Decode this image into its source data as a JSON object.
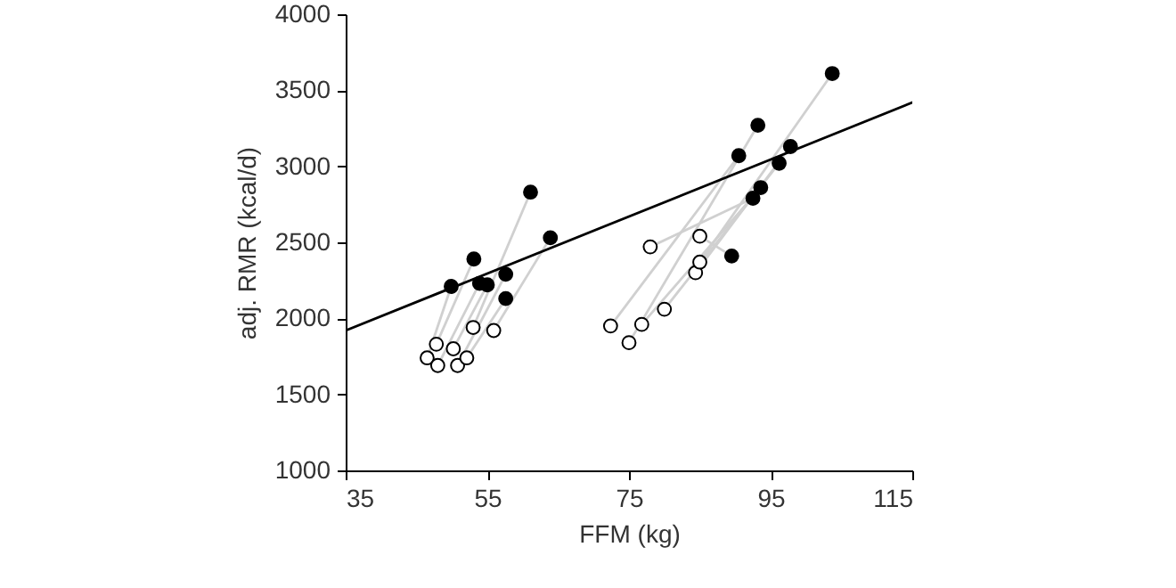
{
  "chart_data": {
    "type": "scatter",
    "xlabel": "FFM (kg)",
    "ylabel": "adj. RMR (kcal/d)",
    "xlim": [
      35,
      115
    ],
    "xticks": [
      35,
      55,
      75,
      95,
      115
    ],
    "ylim": [
      1000,
      4000
    ],
    "yticks": [
      1000,
      1500,
      2000,
      2500,
      3000,
      3500,
      4000
    ],
    "series": [
      {
        "type": "line",
        "marker": "none",
        "color": "#d0d0d0",
        "x": [
          46.5,
          49.9
        ],
        "values": [
          1740,
          2210
        ]
      },
      {
        "type": "line",
        "marker": "none",
        "color": "#d0d0d0",
        "x": [
          47.8,
          53.1
        ],
        "values": [
          1830,
          2390
        ]
      },
      {
        "type": "line",
        "marker": "none",
        "color": "#d0d0d0",
        "x": [
          48.0,
          53.9
        ],
        "values": [
          1690,
          2230
        ]
      },
      {
        "type": "line",
        "marker": "none",
        "color": "#d0d0d0",
        "x": [
          50.2,
          55.0
        ],
        "values": [
          1800,
          2220
        ]
      },
      {
        "type": "line",
        "marker": "none",
        "color": "#d0d0d0",
        "x": [
          50.8,
          57.6
        ],
        "values": [
          1690,
          2290
        ]
      },
      {
        "type": "line",
        "marker": "none",
        "color": "#d0d0d0",
        "x": [
          52.1,
          57.6
        ],
        "values": [
          1740,
          2130
        ]
      },
      {
        "type": "line",
        "marker": "none",
        "color": "#d0d0d0",
        "x": [
          53.0,
          61.1
        ],
        "values": [
          1940,
          2830
        ]
      },
      {
        "type": "line",
        "marker": "none",
        "color": "#d0d0d0",
        "x": [
          55.9,
          63.9
        ],
        "values": [
          1920,
          2530
        ]
      },
      {
        "type": "line",
        "marker": "none",
        "color": "#d0d0d0",
        "x": [
          72.4,
          90.5
        ],
        "values": [
          1950,
          3070
        ]
      },
      {
        "type": "line",
        "marker": "none",
        "color": "#d0d0d0",
        "x": [
          75.0,
          93.2
        ],
        "values": [
          1840,
          3270
        ]
      },
      {
        "type": "line",
        "marker": "none",
        "color": "#d0d0d0",
        "x": [
          76.8,
          93.6
        ],
        "values": [
          1960,
          2860
        ]
      },
      {
        "type": "line",
        "marker": "none",
        "color": "#d0d0d0",
        "x": [
          78.0,
          92.5
        ],
        "values": [
          2470,
          2790
        ]
      },
      {
        "type": "line",
        "marker": "none",
        "color": "#d0d0d0",
        "x": [
          80.0,
          96.2
        ],
        "values": [
          2060,
          3020
        ]
      },
      {
        "type": "line",
        "marker": "none",
        "color": "#d0d0d0",
        "x": [
          84.4,
          97.8
        ],
        "values": [
          2300,
          3130
        ]
      },
      {
        "type": "line",
        "marker": "none",
        "color": "#d0d0d0",
        "x": [
          85.0,
          103.7
        ],
        "values": [
          2370,
          3610
        ]
      },
      {
        "type": "line",
        "marker": "none",
        "color": "#d0d0d0",
        "x": [
          85.0,
          89.5
        ],
        "values": [
          2540,
          2410
        ]
      },
      {
        "type": "line",
        "marker": "none",
        "color": "#000000",
        "x": [
          35,
          115
        ],
        "values": [
          1920,
          3420
        ]
      },
      {
        "marker": "circle",
        "color": "#ffffff",
        "x": [
          46.5,
          47.8,
          48.0,
          50.2,
          50.8,
          52.1,
          53.0,
          55.9,
          72.4,
          75.0,
          76.8,
          78.0,
          80.0,
          84.4,
          85.0,
          85.0
        ],
        "values": [
          1740,
          1830,
          1690,
          1800,
          1690,
          1740,
          1940,
          1920,
          1950,
          1840,
          1960,
          2470,
          2060,
          2300,
          2370,
          2540
        ]
      },
      {
        "marker": "circle",
        "color": "#000000",
        "x": [
          49.9,
          53.1,
          53.9,
          55.0,
          57.6,
          57.6,
          61.1,
          63.9,
          89.5,
          90.5,
          92.5,
          93.2,
          93.6,
          96.2,
          97.8,
          103.7
        ],
        "values": [
          2210,
          2390,
          2230,
          2220,
          2290,
          2130,
          2830,
          2530,
          2410,
          3070,
          2790,
          3270,
          2860,
          3020,
          3130,
          3610
        ]
      }
    ]
  }
}
